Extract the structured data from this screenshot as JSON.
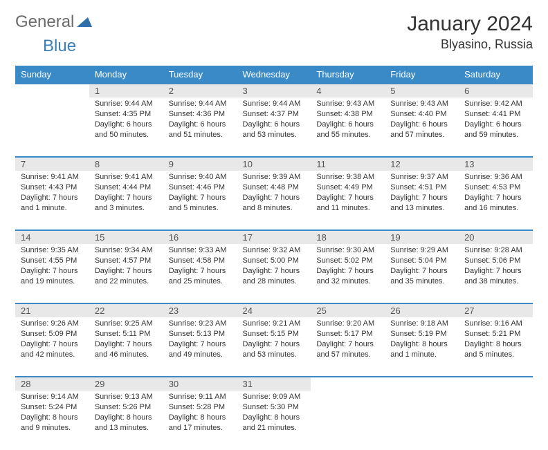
{
  "logo": {
    "general": "General",
    "blue": "Blue"
  },
  "title": "January 2024",
  "location": "Blyasino, Russia",
  "colors": {
    "header_bg": "#3a8ac7",
    "daynum_bg": "#e8e8e8",
    "row_border": "#3a8ac7",
    "text": "#333333",
    "logo_gray": "#6b6b6b",
    "logo_blue": "#3a7fb8"
  },
  "weekdays": [
    "Sunday",
    "Monday",
    "Tuesday",
    "Wednesday",
    "Thursday",
    "Friday",
    "Saturday"
  ],
  "weeks": [
    {
      "days": [
        {
          "num": "",
          "sunrise": "",
          "sunset": "",
          "daylight": ""
        },
        {
          "num": "1",
          "sunrise": "Sunrise: 9:44 AM",
          "sunset": "Sunset: 4:35 PM",
          "daylight": "Daylight: 6 hours and 50 minutes."
        },
        {
          "num": "2",
          "sunrise": "Sunrise: 9:44 AM",
          "sunset": "Sunset: 4:36 PM",
          "daylight": "Daylight: 6 hours and 51 minutes."
        },
        {
          "num": "3",
          "sunrise": "Sunrise: 9:44 AM",
          "sunset": "Sunset: 4:37 PM",
          "daylight": "Daylight: 6 hours and 53 minutes."
        },
        {
          "num": "4",
          "sunrise": "Sunrise: 9:43 AM",
          "sunset": "Sunset: 4:38 PM",
          "daylight": "Daylight: 6 hours and 55 minutes."
        },
        {
          "num": "5",
          "sunrise": "Sunrise: 9:43 AM",
          "sunset": "Sunset: 4:40 PM",
          "daylight": "Daylight: 6 hours and 57 minutes."
        },
        {
          "num": "6",
          "sunrise": "Sunrise: 9:42 AM",
          "sunset": "Sunset: 4:41 PM",
          "daylight": "Daylight: 6 hours and 59 minutes."
        }
      ]
    },
    {
      "days": [
        {
          "num": "7",
          "sunrise": "Sunrise: 9:41 AM",
          "sunset": "Sunset: 4:43 PM",
          "daylight": "Daylight: 7 hours and 1 minute."
        },
        {
          "num": "8",
          "sunrise": "Sunrise: 9:41 AM",
          "sunset": "Sunset: 4:44 PM",
          "daylight": "Daylight: 7 hours and 3 minutes."
        },
        {
          "num": "9",
          "sunrise": "Sunrise: 9:40 AM",
          "sunset": "Sunset: 4:46 PM",
          "daylight": "Daylight: 7 hours and 5 minutes."
        },
        {
          "num": "10",
          "sunrise": "Sunrise: 9:39 AM",
          "sunset": "Sunset: 4:48 PM",
          "daylight": "Daylight: 7 hours and 8 minutes."
        },
        {
          "num": "11",
          "sunrise": "Sunrise: 9:38 AM",
          "sunset": "Sunset: 4:49 PM",
          "daylight": "Daylight: 7 hours and 11 minutes."
        },
        {
          "num": "12",
          "sunrise": "Sunrise: 9:37 AM",
          "sunset": "Sunset: 4:51 PM",
          "daylight": "Daylight: 7 hours and 13 minutes."
        },
        {
          "num": "13",
          "sunrise": "Sunrise: 9:36 AM",
          "sunset": "Sunset: 4:53 PM",
          "daylight": "Daylight: 7 hours and 16 minutes."
        }
      ]
    },
    {
      "days": [
        {
          "num": "14",
          "sunrise": "Sunrise: 9:35 AM",
          "sunset": "Sunset: 4:55 PM",
          "daylight": "Daylight: 7 hours and 19 minutes."
        },
        {
          "num": "15",
          "sunrise": "Sunrise: 9:34 AM",
          "sunset": "Sunset: 4:57 PM",
          "daylight": "Daylight: 7 hours and 22 minutes."
        },
        {
          "num": "16",
          "sunrise": "Sunrise: 9:33 AM",
          "sunset": "Sunset: 4:58 PM",
          "daylight": "Daylight: 7 hours and 25 minutes."
        },
        {
          "num": "17",
          "sunrise": "Sunrise: 9:32 AM",
          "sunset": "Sunset: 5:00 PM",
          "daylight": "Daylight: 7 hours and 28 minutes."
        },
        {
          "num": "18",
          "sunrise": "Sunrise: 9:30 AM",
          "sunset": "Sunset: 5:02 PM",
          "daylight": "Daylight: 7 hours and 32 minutes."
        },
        {
          "num": "19",
          "sunrise": "Sunrise: 9:29 AM",
          "sunset": "Sunset: 5:04 PM",
          "daylight": "Daylight: 7 hours and 35 minutes."
        },
        {
          "num": "20",
          "sunrise": "Sunrise: 9:28 AM",
          "sunset": "Sunset: 5:06 PM",
          "daylight": "Daylight: 7 hours and 38 minutes."
        }
      ]
    },
    {
      "days": [
        {
          "num": "21",
          "sunrise": "Sunrise: 9:26 AM",
          "sunset": "Sunset: 5:09 PM",
          "daylight": "Daylight: 7 hours and 42 minutes."
        },
        {
          "num": "22",
          "sunrise": "Sunrise: 9:25 AM",
          "sunset": "Sunset: 5:11 PM",
          "daylight": "Daylight: 7 hours and 46 minutes."
        },
        {
          "num": "23",
          "sunrise": "Sunrise: 9:23 AM",
          "sunset": "Sunset: 5:13 PM",
          "daylight": "Daylight: 7 hours and 49 minutes."
        },
        {
          "num": "24",
          "sunrise": "Sunrise: 9:21 AM",
          "sunset": "Sunset: 5:15 PM",
          "daylight": "Daylight: 7 hours and 53 minutes."
        },
        {
          "num": "25",
          "sunrise": "Sunrise: 9:20 AM",
          "sunset": "Sunset: 5:17 PM",
          "daylight": "Daylight: 7 hours and 57 minutes."
        },
        {
          "num": "26",
          "sunrise": "Sunrise: 9:18 AM",
          "sunset": "Sunset: 5:19 PM",
          "daylight": "Daylight: 8 hours and 1 minute."
        },
        {
          "num": "27",
          "sunrise": "Sunrise: 9:16 AM",
          "sunset": "Sunset: 5:21 PM",
          "daylight": "Daylight: 8 hours and 5 minutes."
        }
      ]
    },
    {
      "days": [
        {
          "num": "28",
          "sunrise": "Sunrise: 9:14 AM",
          "sunset": "Sunset: 5:24 PM",
          "daylight": "Daylight: 8 hours and 9 minutes."
        },
        {
          "num": "29",
          "sunrise": "Sunrise: 9:13 AM",
          "sunset": "Sunset: 5:26 PM",
          "daylight": "Daylight: 8 hours and 13 minutes."
        },
        {
          "num": "30",
          "sunrise": "Sunrise: 9:11 AM",
          "sunset": "Sunset: 5:28 PM",
          "daylight": "Daylight: 8 hours and 17 minutes."
        },
        {
          "num": "31",
          "sunrise": "Sunrise: 9:09 AM",
          "sunset": "Sunset: 5:30 PM",
          "daylight": "Daylight: 8 hours and 21 minutes."
        },
        {
          "num": "",
          "sunrise": "",
          "sunset": "",
          "daylight": ""
        },
        {
          "num": "",
          "sunrise": "",
          "sunset": "",
          "daylight": ""
        },
        {
          "num": "",
          "sunrise": "",
          "sunset": "",
          "daylight": ""
        }
      ]
    }
  ]
}
